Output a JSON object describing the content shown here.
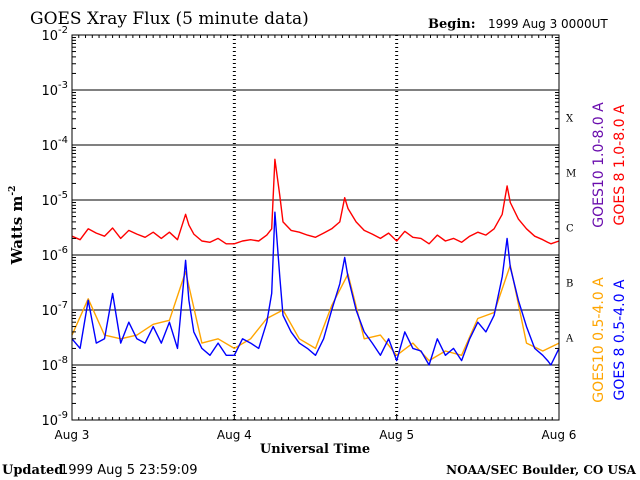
{
  "header": {
    "title": "GOES Xray Flux (5 minute data)",
    "begin_label": "Begin:",
    "begin_value": "1999 Aug 3 0000UT"
  },
  "footer": {
    "updated_label": "Updated",
    "updated_value": "1999 Aug  5 23:59:09",
    "credit": "NOAA/SEC Boulder, CO USA"
  },
  "chart_data": {
    "type": "line",
    "title": "GOES Xray Flux (5 minute data)",
    "xlabel": "Universal Time",
    "ylabel": "Watts m",
    "ylabel_superscript": "-2",
    "yscale": "log",
    "ylim_exp": [
      -9,
      -2
    ],
    "xlim_days": [
      0,
      3
    ],
    "x_ticks": [
      {
        "day": 0,
        "label": "Aug 3"
      },
      {
        "day": 1,
        "label": "Aug 4"
      },
      {
        "day": 2,
        "label": "Aug 5"
      },
      {
        "day": 3,
        "label": "Aug 6"
      }
    ],
    "y_ticks": [
      {
        "exp": -2,
        "label": "-2"
      },
      {
        "exp": -3,
        "label": "-3"
      },
      {
        "exp": -4,
        "label": "-4"
      },
      {
        "exp": -5,
        "label": "-5"
      },
      {
        "exp": -6,
        "label": "-6"
      },
      {
        "exp": -7,
        "label": "-7"
      },
      {
        "exp": -8,
        "label": "-8"
      },
      {
        "exp": -9,
        "label": "-9"
      }
    ],
    "y_tick_base": "10",
    "flare_classes": [
      {
        "label": "X",
        "exp": -3.5
      },
      {
        "label": "M",
        "exp": -4.5
      },
      {
        "label": "C",
        "exp": -5.5
      },
      {
        "label": "B",
        "exp": -6.5
      },
      {
        "label": "A",
        "exp": -7.5
      }
    ],
    "grid": true,
    "legend": [
      {
        "label": "GOES10 1.0-8.0 A",
        "color": "#6a0dad",
        "group": "long"
      },
      {
        "label": "GOES 8 1.0-8.0 A",
        "color": "#ff0000",
        "group": "long"
      },
      {
        "label": "GOES10 0.5-4.0 A",
        "color": "#ffa500",
        "group": "short"
      },
      {
        "label": "GOES 8 0.5-4.0 A",
        "color": "#0000ff",
        "group": "short"
      }
    ],
    "series": [
      {
        "name": "GOES 8 1.0-8.0 A",
        "color": "#ff0000",
        "x": [
          0,
          0.05,
          0.1,
          0.15,
          0.2,
          0.25,
          0.3,
          0.35,
          0.4,
          0.45,
          0.5,
          0.55,
          0.6,
          0.65,
          0.7,
          0.72,
          0.75,
          0.8,
          0.85,
          0.9,
          0.95,
          1.0,
          1.05,
          1.1,
          1.15,
          1.2,
          1.23,
          1.25,
          1.28,
          1.3,
          1.35,
          1.4,
          1.45,
          1.5,
          1.55,
          1.6,
          1.65,
          1.68,
          1.7,
          1.75,
          1.8,
          1.85,
          1.9,
          1.95,
          2.0,
          2.05,
          2.1,
          2.15,
          2.2,
          2.25,
          2.3,
          2.35,
          2.4,
          2.45,
          2.5,
          2.55,
          2.6,
          2.65,
          2.68,
          2.7,
          2.75,
          2.8,
          2.85,
          2.9,
          2.93,
          2.95,
          3.0
        ],
        "y": [
          2.2e-06,
          1.9e-06,
          3e-06,
          2.5e-06,
          2.2e-06,
          3.1e-06,
          2e-06,
          2.8e-06,
          2.4e-06,
          2.1e-06,
          2.6e-06,
          2e-06,
          2.6e-06,
          1.9e-06,
          5.5e-06,
          3.5e-06,
          2.4e-06,
          1.8e-06,
          1.7e-06,
          2e-06,
          1.6e-06,
          1.6e-06,
          1.8e-06,
          1.9e-06,
          1.8e-06,
          2.3e-06,
          3e-06,
          5.5e-05,
          1.2e-05,
          4e-06,
          2.8e-06,
          2.6e-06,
          2.3e-06,
          2.1e-06,
          2.5e-06,
          3e-06,
          4e-06,
          1.1e-05,
          7e-06,
          4e-06,
          2.8e-06,
          2.4e-06,
          2e-06,
          2.5e-06,
          1.8e-06,
          2.7e-06,
          2.1e-06,
          2e-06,
          1.6e-06,
          2.3e-06,
          1.8e-06,
          2e-06,
          1.7e-06,
          2.2e-06,
          2.6e-06,
          2.3e-06,
          3e-06,
          5.5e-06,
          1.8e-05,
          9e-06,
          4.5e-06,
          3e-06,
          2.2e-06,
          1.9e-06,
          1.7e-06,
          1.6e-06,
          1.8e-06
        ]
      },
      {
        "name": "GOES 8 0.5-4.0 A",
        "color": "#0000ff",
        "x": [
          0,
          0.05,
          0.1,
          0.15,
          0.2,
          0.25,
          0.3,
          0.35,
          0.4,
          0.45,
          0.5,
          0.55,
          0.6,
          0.65,
          0.7,
          0.72,
          0.75,
          0.8,
          0.85,
          0.9,
          0.95,
          1.0,
          1.05,
          1.1,
          1.15,
          1.2,
          1.23,
          1.25,
          1.28,
          1.3,
          1.35,
          1.4,
          1.45,
          1.5,
          1.55,
          1.6,
          1.65,
          1.68,
          1.7,
          1.75,
          1.8,
          1.85,
          1.9,
          1.95,
          2.0,
          2.05,
          2.1,
          2.15,
          2.2,
          2.25,
          2.3,
          2.35,
          2.4,
          2.45,
          2.5,
          2.55,
          2.6,
          2.65,
          2.68,
          2.7,
          2.75,
          2.8,
          2.85,
          2.9,
          2.93,
          2.95,
          3.0
        ],
        "y": [
          3e-08,
          2e-08,
          1.5e-07,
          2.5e-08,
          3e-08,
          2e-07,
          2.5e-08,
          6e-08,
          3e-08,
          2.5e-08,
          5e-08,
          2.5e-08,
          6e-08,
          2e-08,
          8e-07,
          1.5e-07,
          4e-08,
          2e-08,
          1.5e-08,
          2.5e-08,
          1.5e-08,
          1.5e-08,
          3e-08,
          2.5e-08,
          2e-08,
          6e-08,
          2e-07,
          6e-06,
          4e-07,
          8e-08,
          4e-08,
          2.5e-08,
          2e-08,
          1.5e-08,
          3e-08,
          1e-07,
          3e-07,
          9e-07,
          4e-07,
          1e-07,
          4e-08,
          2.5e-08,
          1.5e-08,
          3e-08,
          1.2e-08,
          4e-08,
          2e-08,
          1.8e-08,
          1e-08,
          3e-08,
          1.5e-08,
          2e-08,
          1.2e-08,
          3e-08,
          6e-08,
          4e-08,
          8e-08,
          4e-07,
          2e-06,
          6e-07,
          1.5e-07,
          5e-08,
          2e-08,
          1.5e-08,
          1.2e-08,
          1e-08,
          2e-08
        ]
      },
      {
        "name": "GOES10 0.5-4.0 A",
        "color": "#ffa500",
        "x": [
          0,
          0.1,
          0.2,
          0.3,
          0.4,
          0.5,
          0.6,
          0.7,
          0.8,
          0.9,
          1.0,
          1.1,
          1.2,
          1.3,
          1.4,
          1.5,
          1.6,
          1.7,
          1.8,
          1.9,
          2.0,
          2.1,
          2.2,
          2.3,
          2.4,
          2.5,
          2.6,
          2.7,
          2.8,
          2.9,
          3.0
        ],
        "y": [
          3.5e-08,
          1.6e-07,
          3.5e-08,
          3e-08,
          3.5e-08,
          5.5e-08,
          6.5e-08,
          5e-07,
          2.5e-08,
          3e-08,
          2e-08,
          3e-08,
          7e-08,
          1e-07,
          3e-08,
          2e-08,
          1.2e-07,
          4.5e-07,
          3e-08,
          3.5e-08,
          1.5e-08,
          2.5e-08,
          1.2e-08,
          1.8e-08,
          1.5e-08,
          7e-08,
          9e-08,
          6.5e-07,
          2.5e-08,
          1.8e-08,
          2.5e-08
        ]
      }
    ]
  }
}
